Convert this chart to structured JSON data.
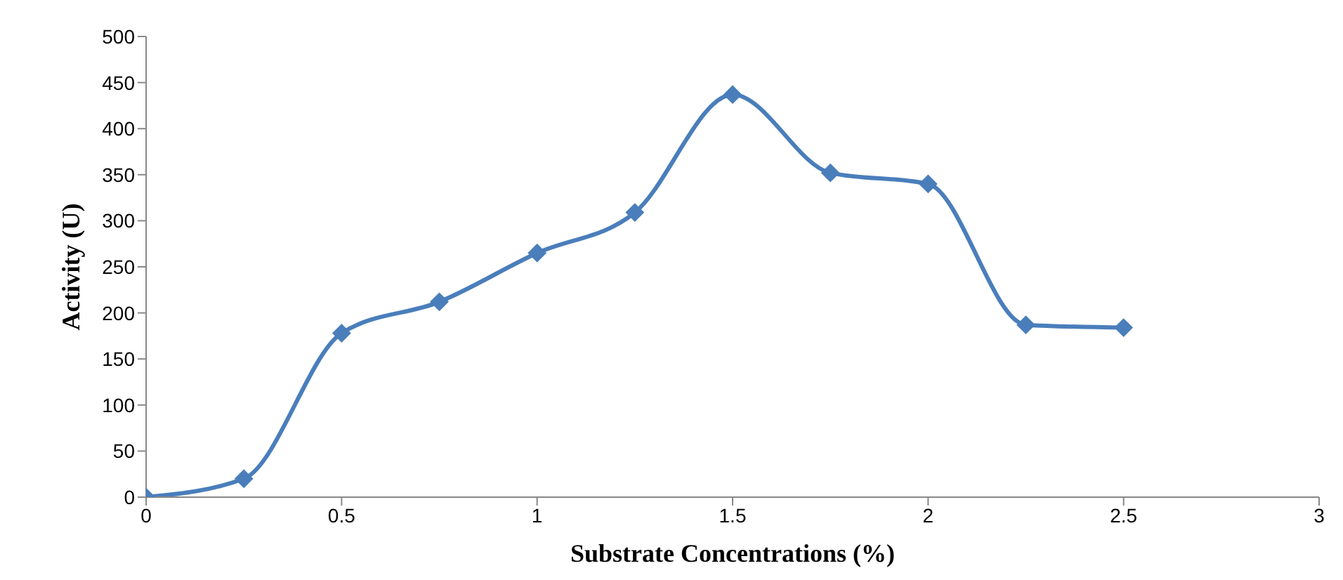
{
  "chart_data": {
    "type": "line",
    "xlabel": "Substrate Concentrations (%)",
    "ylabel": "Activity (U)",
    "x": [
      0,
      0.25,
      0.5,
      0.75,
      1,
      1.25,
      1.5,
      1.75,
      2,
      2.25,
      2.5
    ],
    "values": [
      0,
      20,
      178,
      212,
      265,
      309,
      437,
      352,
      340,
      187,
      184
    ],
    "color": "#4a7ebb",
    "marker": "diamond",
    "line_style": "solid",
    "grid": false,
    "xlim": [
      0,
      3
    ],
    "xticks": [
      0,
      0.5,
      1,
      1.5,
      2,
      2.5,
      3
    ],
    "ylim": [
      0,
      500
    ],
    "yticks": [
      0,
      50,
      100,
      150,
      200,
      250,
      300,
      350,
      400,
      450,
      500
    ]
  }
}
